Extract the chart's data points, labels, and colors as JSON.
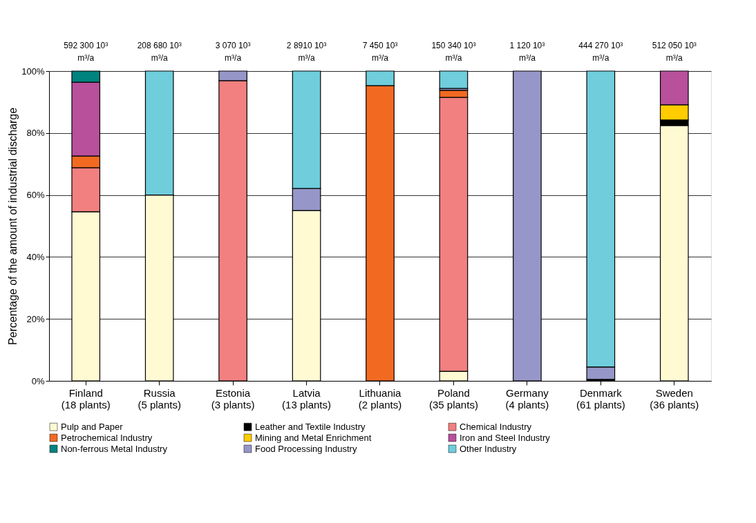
{
  "chart_data": {
    "type": "bar",
    "stacked": true,
    "ylabel": "Percentage of the amount of industrial discharge",
    "categories": [
      "Finland (18 plants)",
      "Russia (5 plants)",
      "Estonia (3 plants)",
      "Latvia (13 plants)",
      "Lithuania (2 plants)",
      "Poland (35 plants)",
      "Germany (4 plants)",
      "Denmark (61 plants)",
      "Sweden (36 plants)"
    ],
    "series": [
      {
        "name": "Pulp and Paper",
        "color": "#fffad2",
        "values": [
          54.6,
          60,
          null,
          55,
          null,
          3.1,
          null,
          null,
          82.4
        ]
      },
      {
        "name": "Leather and Textile Industry",
        "color": "#000000",
        "values": [
          null,
          null,
          null,
          null,
          null,
          null,
          null,
          0.5,
          1.8
        ]
      },
      {
        "name": "Chemical Industry",
        "color": "#f28080",
        "values": [
          14.2,
          null,
          96.9,
          null,
          null,
          88.4,
          null,
          null,
          null
        ]
      },
      {
        "name": "Petrochemical Industry",
        "color": "#f26a22",
        "values": [
          3.8,
          null,
          null,
          null,
          95.3,
          2.3,
          null,
          null,
          null
        ]
      },
      {
        "name": "Mining and Metal Enrichment",
        "color": "#ffcc00",
        "values": [
          null,
          null,
          null,
          null,
          null,
          null,
          null,
          null,
          4.9
        ]
      },
      {
        "name": "Iron and Steel Industry",
        "color": "#b8509c",
        "values": [
          23.8,
          null,
          null,
          null,
          null,
          null,
          null,
          null,
          10.9
        ]
      },
      {
        "name": "Non-ferrous Metal Industry",
        "color": "#00827f",
        "values": [
          3.6,
          null,
          null,
          null,
          null,
          null,
          null,
          null,
          null
        ]
      },
      {
        "name": "Food Processing Industry",
        "color": "#9696c8",
        "values": [
          null,
          null,
          3.1,
          7.1,
          null,
          0.6,
          100,
          4,
          null
        ]
      },
      {
        "name": "Other Industry",
        "color": "#6fcddc",
        "values": [
          null,
          40,
          null,
          37.9,
          4.7,
          5.6,
          null,
          95.5,
          null
        ]
      }
    ],
    "ylim": [
      0,
      100
    ],
    "yticks": [
      {
        "value": 0,
        "label": "0%"
      },
      {
        "value": 20,
        "label": "20%"
      },
      {
        "value": 40,
        "label": "40%"
      },
      {
        "value": 60,
        "label": "60%"
      },
      {
        "value": 80,
        "label": "80%"
      },
      {
        "value": 100,
        "label": "100%"
      }
    ],
    "grid": "y",
    "legend": "bottom",
    "annotations": [
      "592 300 10³\nm³/a",
      "208 680 10³\nm³/a",
      "3 070  10³\nm³/a",
      "2 8910 10³\nm³/a",
      "7 450  10³\nm³/a",
      "150 340 10³\nm³/a",
      "1 120    10³\nm³/a",
      "444 270 10³\nm³/a",
      "512 050 10³\nm³/a"
    ]
  }
}
